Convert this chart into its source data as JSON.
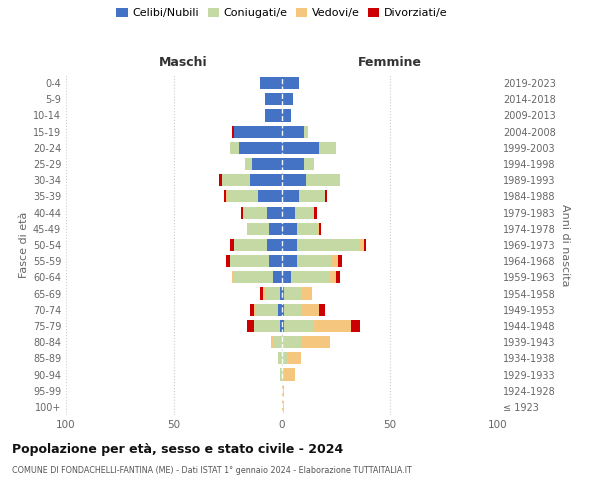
{
  "age_groups": [
    "100+",
    "95-99",
    "90-94",
    "85-89",
    "80-84",
    "75-79",
    "70-74",
    "65-69",
    "60-64",
    "55-59",
    "50-54",
    "45-49",
    "40-44",
    "35-39",
    "30-34",
    "25-29",
    "20-24",
    "15-19",
    "10-14",
    "5-9",
    "0-4"
  ],
  "birth_years": [
    "≤ 1923",
    "1924-1928",
    "1929-1933",
    "1934-1938",
    "1939-1943",
    "1944-1948",
    "1949-1953",
    "1954-1958",
    "1959-1963",
    "1964-1968",
    "1969-1973",
    "1974-1978",
    "1979-1983",
    "1984-1988",
    "1989-1993",
    "1994-1998",
    "1999-2003",
    "2004-2008",
    "2009-2013",
    "2014-2018",
    "2019-2023"
  ],
  "colors": {
    "celibi": "#4472c4",
    "coniugati": "#c5d9a4",
    "vedovi": "#f5c77e",
    "divorziati": "#cc0000"
  },
  "maschi": {
    "celibi": [
      0,
      0,
      0,
      0,
      0,
      1,
      2,
      1,
      4,
      6,
      7,
      6,
      7,
      11,
      15,
      14,
      20,
      22,
      8,
      8,
      10
    ],
    "coniugati": [
      0,
      0,
      1,
      2,
      4,
      12,
      10,
      7,
      18,
      18,
      15,
      10,
      11,
      14,
      13,
      3,
      4,
      0,
      0,
      0,
      0
    ],
    "vedovi": [
      0,
      0,
      0,
      0,
      1,
      0,
      1,
      1,
      1,
      0,
      0,
      0,
      0,
      1,
      0,
      0,
      0,
      0,
      0,
      0,
      0
    ],
    "divorziati": [
      0,
      0,
      0,
      0,
      0,
      3,
      2,
      1,
      0,
      2,
      2,
      0,
      1,
      1,
      1,
      0,
      0,
      1,
      0,
      0,
      0
    ]
  },
  "femmine": {
    "celibi": [
      0,
      0,
      0,
      0,
      0,
      1,
      1,
      1,
      4,
      7,
      7,
      7,
      6,
      8,
      11,
      10,
      17,
      10,
      4,
      5,
      8
    ],
    "coniugati": [
      0,
      0,
      1,
      3,
      9,
      14,
      8,
      8,
      18,
      16,
      29,
      9,
      9,
      12,
      16,
      5,
      8,
      2,
      0,
      0,
      0
    ],
    "vedovi": [
      1,
      1,
      5,
      6,
      13,
      17,
      8,
      5,
      3,
      3,
      2,
      1,
      0,
      0,
      0,
      0,
      0,
      0,
      0,
      0,
      0
    ],
    "divorziati": [
      0,
      0,
      0,
      0,
      0,
      4,
      3,
      0,
      2,
      2,
      1,
      1,
      1,
      1,
      0,
      0,
      0,
      0,
      0,
      0,
      0
    ]
  },
  "xlim": 100,
  "title_main": "Popolazione per età, sesso e stato civile - 2024",
  "title_sub": "COMUNE DI FONDACHELLI-FANTINA (ME) - Dati ISTAT 1° gennaio 2024 - Elaborazione TUTTAITALIA.IT",
  "ylabel_left": "Fasce di età",
  "ylabel_right": "Anni di nascita",
  "legend_labels": [
    "Celibi/Nubili",
    "Coniugati/e",
    "Vedovi/e",
    "Divorziati/e"
  ],
  "maschi_label": "Maschi",
  "femmine_label": "Femmine",
  "bg_color": "#ffffff",
  "grid_color": "#cccccc"
}
